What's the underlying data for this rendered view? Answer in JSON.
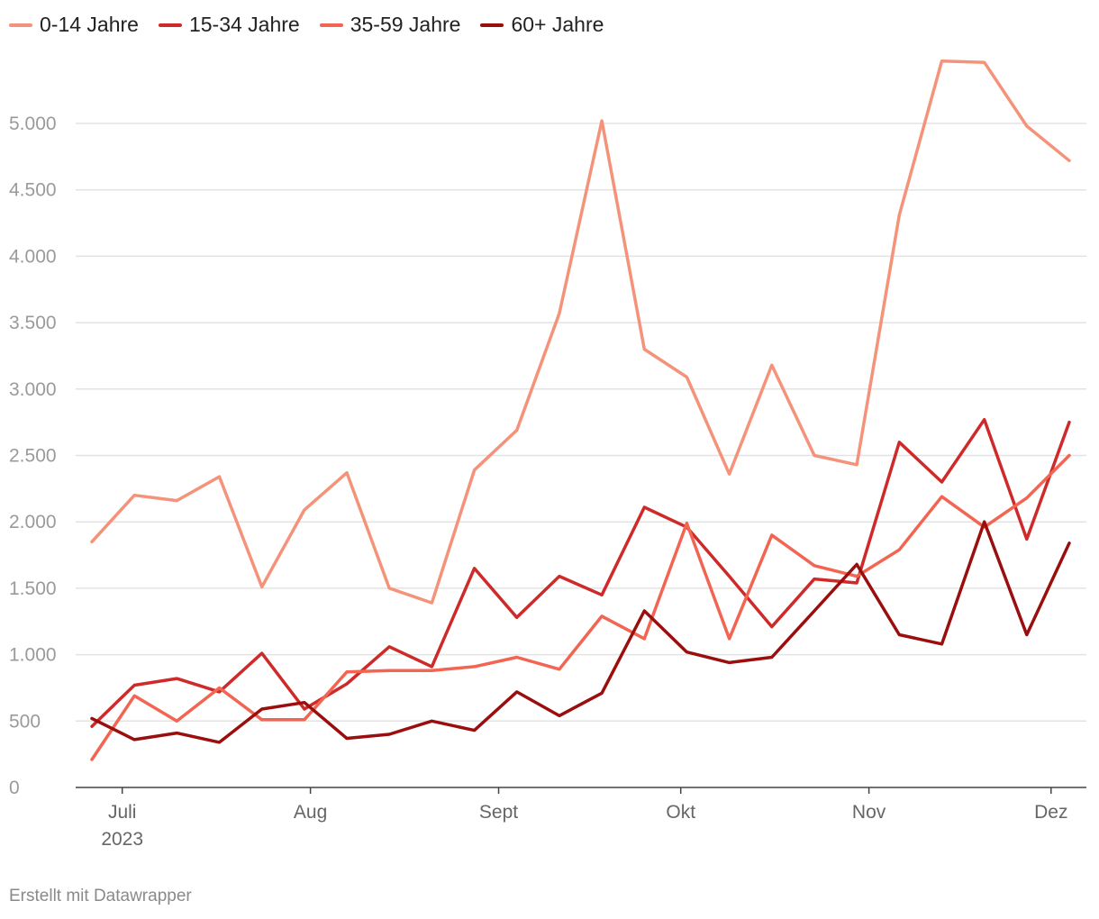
{
  "chart_data": {
    "type": "line",
    "title": "",
    "xlabel": "",
    "ylabel": "",
    "ylim": [
      0,
      5000
    ],
    "yticks": [
      0,
      500,
      1000,
      1500,
      2000,
      2500,
      3000,
      3500,
      4000,
      4500,
      5000
    ],
    "ytick_labels": [
      "0",
      "500",
      "1.000",
      "1.500",
      "2.000",
      "2.500",
      "3.000",
      "3.500",
      "4.000",
      "4.500",
      "5.000"
    ],
    "grid": true,
    "legend_position": "top-left",
    "x": [
      "2023-06-26",
      "2023-07-03",
      "2023-07-10",
      "2023-07-17",
      "2023-07-24",
      "2023-07-31",
      "2023-08-07",
      "2023-08-14",
      "2023-08-21",
      "2023-08-28",
      "2023-09-04",
      "2023-09-11",
      "2023-09-18",
      "2023-09-25",
      "2023-10-02",
      "2023-10-09",
      "2023-10-16",
      "2023-10-23",
      "2023-10-30",
      "2023-11-06",
      "2023-11-13",
      "2023-11-20",
      "2023-11-27",
      "2023-12-04"
    ],
    "xticks": [
      {
        "date": "2023-07-01",
        "label": "Juli",
        "sublabel": "2023"
      },
      {
        "date": "2023-08-01",
        "label": "Aug",
        "sublabel": ""
      },
      {
        "date": "2023-09-01",
        "label": "Sept",
        "sublabel": ""
      },
      {
        "date": "2023-10-01",
        "label": "Okt",
        "sublabel": ""
      },
      {
        "date": "2023-11-01",
        "label": "Nov",
        "sublabel": ""
      },
      {
        "date": "2023-12-01",
        "label": "Dez",
        "sublabel": ""
      }
    ],
    "series": [
      {
        "name": "0-14 Jahre",
        "color": "#f4937a",
        "values": [
          1850,
          2200,
          2160,
          2340,
          1510,
          2090,
          2370,
          1500,
          1390,
          2390,
          2690,
          3570,
          5020,
          3300,
          3090,
          2360,
          3180,
          2500,
          2430,
          4310,
          5470,
          5460,
          4980,
          4720
        ]
      },
      {
        "name": "15-34 Jahre",
        "color": "#cf2a2a",
        "values": [
          460,
          770,
          820,
          720,
          1010,
          590,
          780,
          1060,
          910,
          1650,
          1280,
          1590,
          1450,
          2110,
          1960,
          1590,
          1210,
          1570,
          1540,
          2600,
          2300,
          2770,
          1870,
          2750
        ]
      },
      {
        "name": "35-59 Jahre",
        "color": "#f26552",
        "values": [
          210,
          690,
          500,
          750,
          510,
          510,
          870,
          880,
          880,
          910,
          980,
          890,
          1290,
          1120,
          1990,
          1120,
          1900,
          1670,
          1590,
          1790,
          2190,
          1960,
          2180,
          2500
        ]
      },
      {
        "name": "60+ Jahre",
        "color": "#9b0e0e",
        "values": [
          520,
          360,
          410,
          340,
          590,
          640,
          370,
          400,
          500,
          430,
          720,
          540,
          710,
          1330,
          1020,
          940,
          980,
          1330,
          1680,
          1150,
          1080,
          2000,
          1150,
          1840
        ]
      }
    ]
  },
  "footer": {
    "credit": "Erstellt mit Datawrapper"
  }
}
